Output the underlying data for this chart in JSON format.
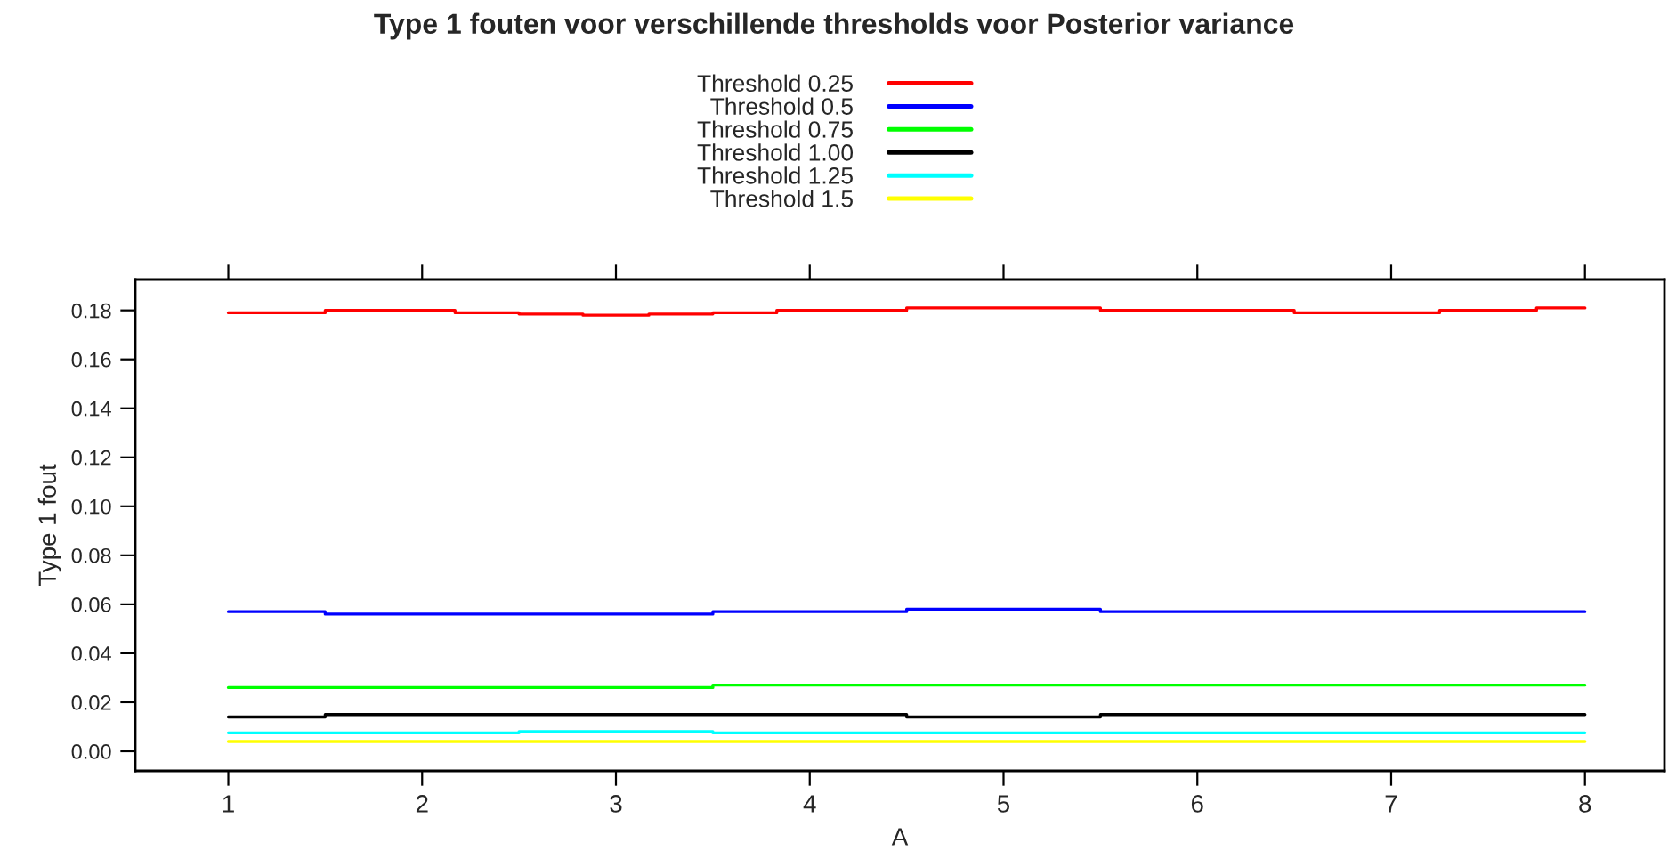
{
  "chart_data": {
    "type": "step",
    "title": "Type 1 fouten voor verschillende thresholds voor Posterior variance",
    "xlabel": "A",
    "ylabel": "Type 1 fout",
    "series": [
      {
        "name": "Threshold 0.25",
        "color": "#ff0000",
        "x": [
          1,
          1.5,
          2.17,
          2.5,
          2.83,
          3.17,
          3.5,
          3.83,
          4.5,
          5.5,
          6.5,
          7.25,
          7.75,
          8
        ],
        "values": [
          0.179,
          0.18,
          0.179,
          0.1785,
          0.178,
          0.1785,
          0.179,
          0.18,
          0.181,
          0.18,
          0.179,
          0.18,
          0.181,
          0.181
        ]
      },
      {
        "name": "Threshold 0.5",
        "color": "#0000ff",
        "x": [
          1,
          1.5,
          3.5,
          4.5,
          5.5,
          8
        ],
        "values": [
          0.057,
          0.056,
          0.057,
          0.058,
          0.057,
          0.057
        ]
      },
      {
        "name": "Threshold 0.75",
        "color": "#00ff00",
        "x": [
          1,
          3.5,
          8
        ],
        "values": [
          0.026,
          0.027,
          0.027
        ]
      },
      {
        "name": "Threshold 1.00",
        "color": "#000000",
        "x": [
          1,
          1.5,
          4.5,
          5.5,
          8
        ],
        "values": [
          0.014,
          0.015,
          0.014,
          0.015,
          0.015
        ]
      },
      {
        "name": "Threshold 1.25",
        "color": "#00ffff",
        "x": [
          1,
          2.5,
          3.5,
          8
        ],
        "values": [
          0.0075,
          0.008,
          0.0075,
          0.0075
        ]
      },
      {
        "name": "Threshold 1.5",
        "color": "#ffff00",
        "x": [
          1,
          8
        ],
        "values": [
          0.004,
          0.004
        ]
      }
    ],
    "xlim": [
      0.52,
      8.41
    ],
    "ylim": [
      -0.008,
      0.1926
    ],
    "xticks": [
      1,
      2,
      3,
      4,
      5,
      6,
      7,
      8
    ],
    "yticks": [
      {
        "value": 0,
        "label": "0.00"
      },
      {
        "value": 0.02,
        "label": "0.02"
      },
      {
        "value": 0.04,
        "label": "0.04"
      },
      {
        "value": 0.06,
        "label": "0.06"
      },
      {
        "value": 0.08,
        "label": "0.08"
      },
      {
        "value": 0.1,
        "label": "0.10"
      },
      {
        "value": 0.12,
        "label": "0.12"
      },
      {
        "value": 0.14,
        "label": "0.14"
      },
      {
        "value": 0.16,
        "label": "0.16"
      },
      {
        "value": 0.18,
        "label": "0.18"
      }
    ],
    "grid": false,
    "legend": "top"
  }
}
